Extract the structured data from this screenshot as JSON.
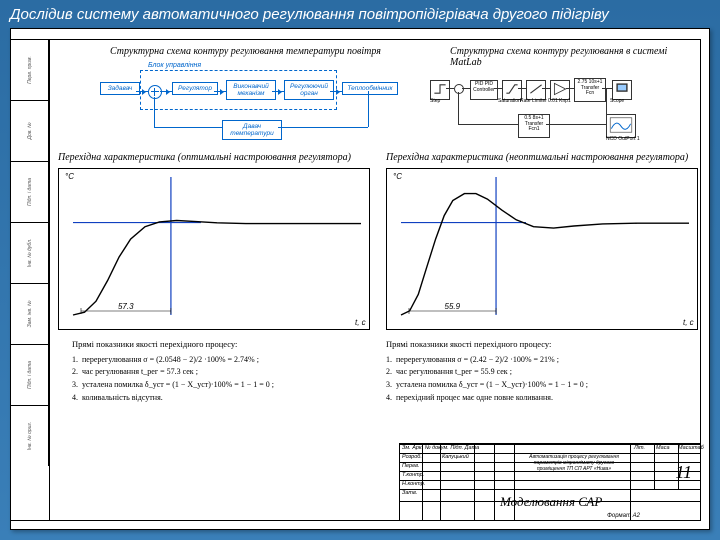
{
  "page_title": "Дослідив систему автоматичного регулювання повітропідігрівача другого підігріву",
  "side_labels": [
    "Інв. № ориг.",
    "Підп. і дата",
    "Зам. інв. №",
    "Інв. № дубл.",
    "Підп. і дата",
    "Дов. №",
    "Перв. прим."
  ],
  "diag1": {
    "title": "Структурна схема контуру регулювання температури повітря",
    "control_block": "Блок управління",
    "nodes": {
      "setpoint": "Задавач",
      "reg": "Регулятор",
      "actuator": "Виконавчий механізм",
      "valve": "Регулюючий орган",
      "hx": "Теплообмінник",
      "sensor": "Давач температури"
    }
  },
  "diag2": {
    "title": "Структурна схема контуру регулювання в системі MatLab",
    "nodes": {
      "step": "Step",
      "pid": "PID\nPID Controller",
      "sat": "Saturation",
      "rate": "Rate Limiter",
      "k": "0.01\nKпр1",
      "tf1": "2.75\n10s+1\nTransfer Fcn",
      "tf2": "0.5\n8s+1\nTransfer Fcn1",
      "scope": "Scope",
      "nco": "NCD\nOutPort 1"
    }
  },
  "chart1": {
    "title": "Перехідна характеристика (оптимальні настроювання регулятора)",
    "ylabel": "°C",
    "xlabel": "t, c",
    "marker": "57.3",
    "settle_line_x": 0.34,
    "overshoot_y": 0.33,
    "curve": [
      [
        0,
        1
      ],
      [
        0.04,
        0.98
      ],
      [
        0.08,
        0.9
      ],
      [
        0.12,
        0.75
      ],
      [
        0.16,
        0.58
      ],
      [
        0.2,
        0.45
      ],
      [
        0.25,
        0.36
      ],
      [
        0.3,
        0.325
      ],
      [
        0.36,
        0.315
      ],
      [
        0.42,
        0.322
      ],
      [
        0.5,
        0.332
      ],
      [
        0.6,
        0.338
      ],
      [
        0.7,
        0.338
      ],
      [
        0.85,
        0.338
      ],
      [
        1.0,
        0.338
      ]
    ]
  },
  "chart2": {
    "title": "Перехідна характеристика (неоптимальні настроювання регулятора)",
    "ylabel": "°C",
    "xlabel": "t, c",
    "marker": "55.9",
    "settle_line_x": 0.33,
    "overshoot_y": 0.33,
    "curve": [
      [
        0,
        1
      ],
      [
        0.03,
        0.97
      ],
      [
        0.06,
        0.85
      ],
      [
        0.09,
        0.65
      ],
      [
        0.12,
        0.45
      ],
      [
        0.15,
        0.28
      ],
      [
        0.18,
        0.17
      ],
      [
        0.22,
        0.12
      ],
      [
        0.26,
        0.12
      ],
      [
        0.3,
        0.16
      ],
      [
        0.35,
        0.24
      ],
      [
        0.4,
        0.31
      ],
      [
        0.46,
        0.36
      ],
      [
        0.53,
        0.37
      ],
      [
        0.6,
        0.355
      ],
      [
        0.7,
        0.34
      ],
      [
        0.82,
        0.335
      ],
      [
        1.0,
        0.335
      ]
    ]
  },
  "metrics1": {
    "heading": "Прямі показники якості перехідного процесу:",
    "items": [
      "перерегулювання  σ = (2.0548 − 2)/2 ·100% = 2.74% ;",
      "час регулювання  t_рег = 57.3 сек ;",
      "усталена помилка  δ_уст = (1 − X_уст)·100% = 1 − 1 = 0 ;",
      "коливальність відсутня."
    ]
  },
  "metrics2": {
    "heading": "Прямі показники якості перехідного процесу:",
    "items": [
      "перерегулювання  σ = (2.42 − 2)/2 ·100% = 21% ;",
      "час регулювання  t_рег = 55.9 сек ;",
      "усталена помилка  δ_уст = (1 − X_уст)·100% = 1 − 1 = 0 ;",
      "перехідний процес має одне повне коливання."
    ]
  },
  "title_block": {
    "doc_title": "Моделювання САР",
    "sheet_no": "11",
    "subtitle": "Автоматизація процесу регулювання параметрів мікроклімату другого приміщення ТП СП АРТ «Нива»",
    "roles": [
      "Розроб.",
      "Перев.",
      "Т.контр.",
      "Н.контр.",
      "Затв."
    ],
    "cols": [
      "Літ.",
      "Маса",
      "Масштаб"
    ],
    "format": "Формат   А2",
    "changes": "Зм. Арк. № докум. Підп. Дата",
    "signer": "Капуцький"
  },
  "colors": {
    "frame": "#000",
    "diag": "#0066cc",
    "bg": "#fff"
  }
}
